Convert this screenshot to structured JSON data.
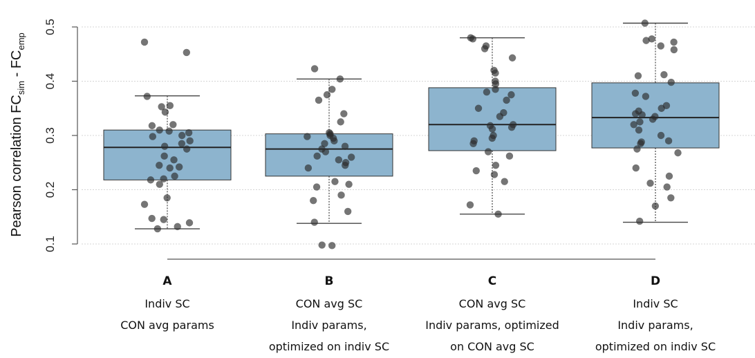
{
  "chart_data": {
    "type": "box",
    "ylabel": "Pearson correlation FC",
    "ylabel_sub1": "sim",
    "ylabel_mid": " - FC",
    "ylabel_sub2": "emp",
    "ylim": [
      0.1,
      0.5
    ],
    "yticks": [
      "0.1",
      "0.2",
      "0.3",
      "0.4",
      "0.5"
    ],
    "grid": true,
    "box_color": "#8db4ce",
    "categories": [
      {
        "letter": "A",
        "lines": [
          "Indiv SC",
          "CON avg params"
        ]
      },
      {
        "letter": "B",
        "lines": [
          "CON avg SC",
          "Indiv params,",
          "optimized on indiv SC"
        ]
      },
      {
        "letter": "C",
        "lines": [
          "CON avg SC",
          "Indiv params, optimized",
          "on CON avg SC"
        ]
      },
      {
        "letter": "D",
        "lines": [
          "Indiv SC",
          "Indiv params,",
          "optimized on indiv SC"
        ]
      }
    ],
    "boxes": [
      {
        "whisker_low": 0.128,
        "q1": 0.218,
        "median": 0.278,
        "q3": 0.31,
        "whisker_high": 0.373,
        "points": [
          0.472,
          0.453,
          0.372,
          0.355,
          0.353,
          0.343,
          0.32,
          0.318,
          0.31,
          0.308,
          0.305,
          0.3,
          0.298,
          0.29,
          0.285,
          0.28,
          0.275,
          0.262,
          0.255,
          0.245,
          0.242,
          0.24,
          0.225,
          0.22,
          0.218,
          0.21,
          0.185,
          0.173,
          0.147,
          0.145,
          0.139,
          0.132,
          0.128
        ]
      },
      {
        "whisker_low": 0.138,
        "q1": 0.225,
        "median": 0.275,
        "q3": 0.303,
        "whisker_high": 0.404,
        "points": [
          0.423,
          0.404,
          0.385,
          0.375,
          0.365,
          0.34,
          0.325,
          0.305,
          0.303,
          0.3,
          0.298,
          0.295,
          0.29,
          0.285,
          0.28,
          0.275,
          0.27,
          0.262,
          0.26,
          0.255,
          0.25,
          0.245,
          0.24,
          0.215,
          0.21,
          0.205,
          0.19,
          0.18,
          0.16,
          0.14,
          0.098,
          0.097
        ]
      },
      {
        "whisker_low": 0.155,
        "q1": 0.272,
        "median": 0.32,
        "q3": 0.388,
        "whisker_high": 0.48,
        "points": [
          0.48,
          0.478,
          0.465,
          0.46,
          0.443,
          0.42,
          0.415,
          0.4,
          0.395,
          0.385,
          0.38,
          0.375,
          0.365,
          0.35,
          0.342,
          0.335,
          0.32,
          0.318,
          0.315,
          0.312,
          0.3,
          0.295,
          0.29,
          0.285,
          0.27,
          0.262,
          0.245,
          0.235,
          0.228,
          0.215,
          0.172,
          0.155
        ]
      },
      {
        "whisker_low": 0.14,
        "q1": 0.277,
        "median": 0.333,
        "q3": 0.397,
        "whisker_high": 0.507,
        "points": [
          0.507,
          0.478,
          0.475,
          0.472,
          0.465,
          0.458,
          0.412,
          0.41,
          0.398,
          0.378,
          0.372,
          0.355,
          0.35,
          0.345,
          0.34,
          0.338,
          0.335,
          0.33,
          0.325,
          0.32,
          0.31,
          0.3,
          0.29,
          0.288,
          0.285,
          0.275,
          0.268,
          0.24,
          0.225,
          0.212,
          0.205,
          0.185,
          0.17,
          0.142
        ]
      }
    ]
  }
}
